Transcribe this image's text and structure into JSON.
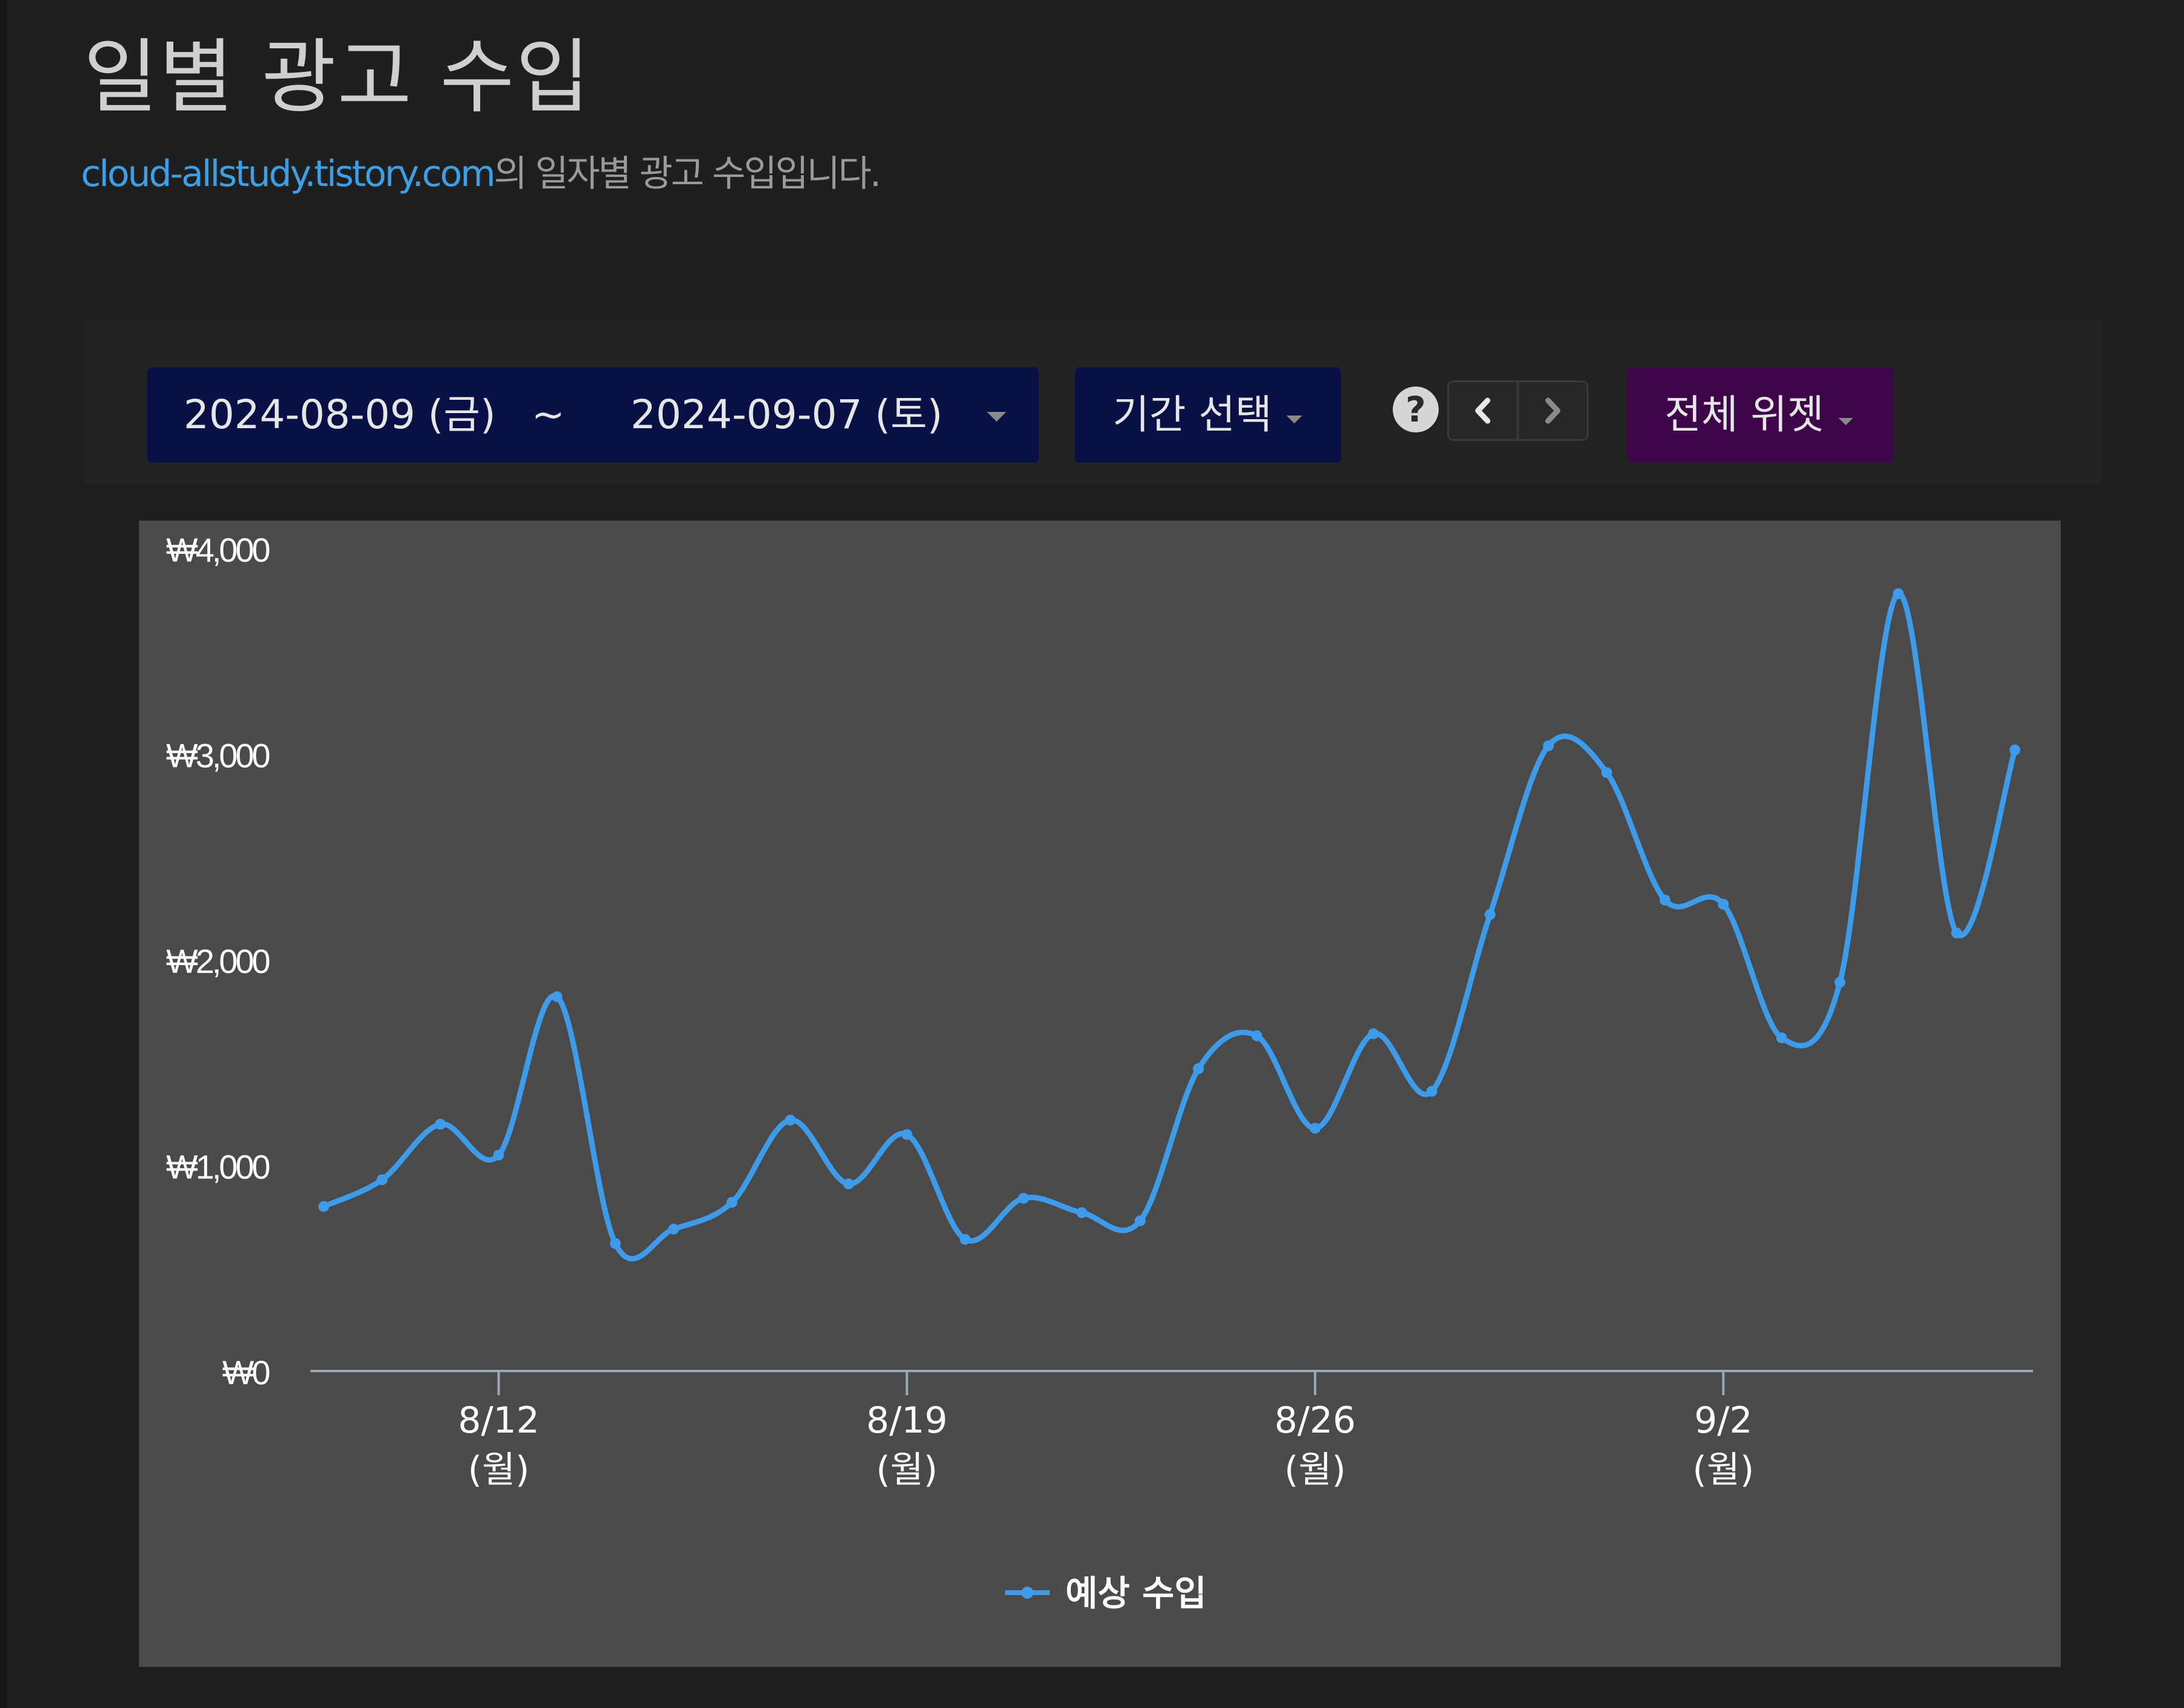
{
  "header": {
    "title": "일별 광고 수입",
    "domain": "cloud-allstudy.tistory.com",
    "description_suffix": "의 일자별 광고 수입입니다."
  },
  "controls": {
    "start_date": "2024-08-09 (금)",
    "separator": "~",
    "end_date": "2024-09-07 (토)",
    "period_label": "기간 선택",
    "help_label": "?",
    "widget_label": "전체 위젯"
  },
  "colors": {
    "series": "#3d9be9",
    "axis": "#9aa8b8",
    "text": "#ffffff",
    "date_button_bg": "#081045",
    "widget_button_bg": "#3d0648",
    "chart_bg": "#4a4a4a"
  },
  "chart_data": {
    "type": "line",
    "x": [
      "8/9",
      "8/10",
      "8/11",
      "8/12",
      "8/13",
      "8/14",
      "8/15",
      "8/16",
      "8/17",
      "8/18",
      "8/19",
      "8/20",
      "8/21",
      "8/22",
      "8/23",
      "8/24",
      "8/25",
      "8/26",
      "8/27",
      "8/28",
      "8/29",
      "8/30",
      "8/31",
      "9/1",
      "9/2",
      "9/3",
      "9/4",
      "9/5",
      "9/6",
      "9/7"
    ],
    "series": [
      {
        "name": "예상 수입",
        "values": [
          800,
          930,
          1200,
          1050,
          1820,
          620,
          690,
          820,
          1220,
          910,
          1150,
          640,
          840,
          770,
          730,
          1470,
          1630,
          1180,
          1640,
          1360,
          2220,
          3040,
          2910,
          2290,
          2270,
          1620,
          1890,
          3780,
          2130,
          3020
        ]
      }
    ],
    "ylim": [
      0,
      4000
    ],
    "y_ticks": [
      0,
      1000,
      2000,
      3000,
      4000
    ],
    "y_tick_labels": [
      "₩0",
      "₩1,000",
      "₩2,000",
      "₩3,000",
      "₩4,000"
    ],
    "x_ticks": [
      {
        "date": "8/12",
        "label": "8/12",
        "weekday": "(월)"
      },
      {
        "date": "8/19",
        "label": "8/19",
        "weekday": "(월)"
      },
      {
        "date": "8/26",
        "label": "8/26",
        "weekday": "(월)"
      },
      {
        "date": "9/2",
        "label": "9/2",
        "weekday": "(월)"
      }
    ],
    "legend": "bottom",
    "grid": false
  }
}
